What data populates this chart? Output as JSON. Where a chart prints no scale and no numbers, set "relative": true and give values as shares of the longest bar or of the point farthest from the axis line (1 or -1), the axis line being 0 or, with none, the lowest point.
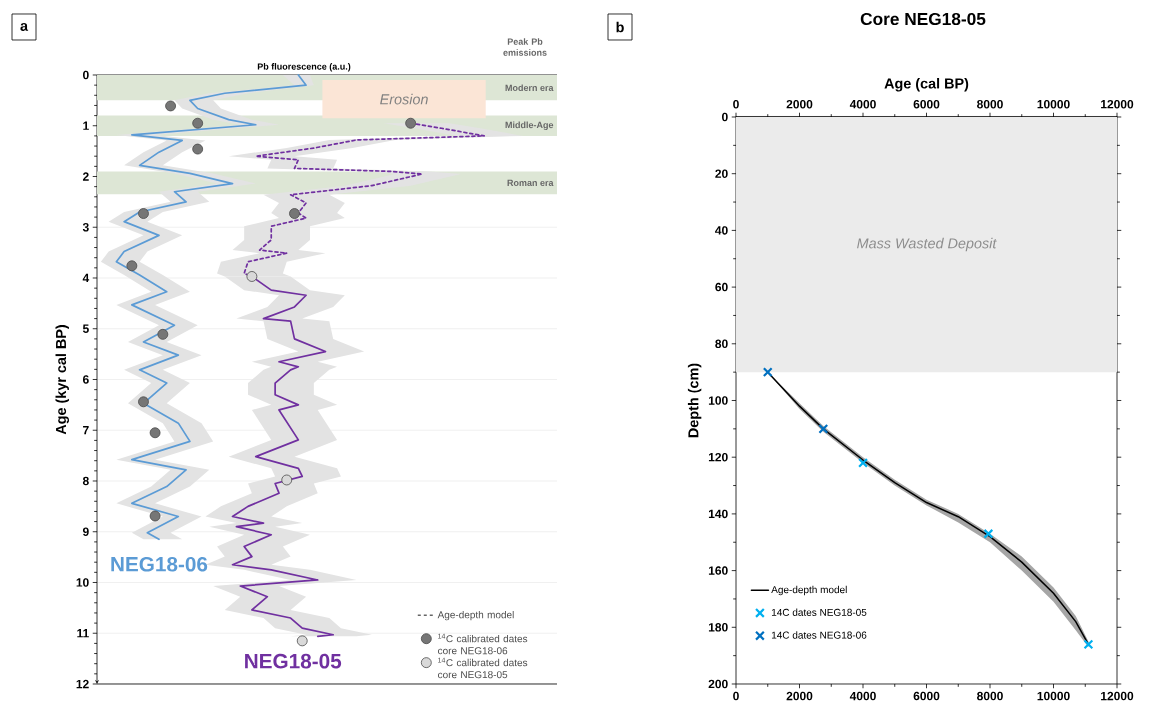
{
  "chart_data": [
    {
      "type": "line",
      "orientation": "horizontal",
      "relative": true,
      "xlabel": "Pb fluorescence (a.u.)",
      "ylabel": "Age (kyr cal BP)",
      "ylim": [
        12,
        0
      ],
      "yticks": [
        0,
        1,
        2,
        3,
        4,
        5,
        6,
        7,
        8,
        9,
        10,
        11,
        12
      ],
      "grid": "y",
      "legend": "bottom right",
      "bands": [
        {
          "axis": "y",
          "from": 0,
          "to": 0.5,
          "label": "Modern era",
          "color": "#dde6d5"
        },
        {
          "axis": "y",
          "from": 0.8,
          "to": 1.2,
          "label": "Middle-Age",
          "color": "#dde6d5"
        },
        {
          "axis": "y",
          "from": 1.9,
          "to": 2.35,
          "label": "Roman era",
          "color": "#dde6d5"
        },
        {
          "axis": "y",
          "from": 0.1,
          "to": 0.85,
          "label": "Erosion",
          "color": "#fbe5d6"
        }
      ],
      "annotations": [
        "a",
        "Peak Pb emissions",
        "Age-depth model"
      ],
      "series": [
        {
          "name": "NEG18-06",
          "color": "#5b9bd5",
          "line_style": "solid",
          "x": [
            0,
            0.2,
            0.36,
            0.5,
            0.66,
            0.88,
            0.98,
            1.18,
            1.29,
            1.52,
            1.78,
            1.94,
            2.14,
            2.3,
            2.5,
            2.7,
            2.89,
            3.16,
            3.48,
            3.68,
            3.94,
            4.27,
            4.53,
            4.93,
            5.26,
            5.52,
            5.81,
            6.07,
            6.47,
            6.86,
            7.22,
            7.58,
            7.78,
            8.11,
            8.44,
            8.7,
            9.02,
            9.15
          ],
          "values": [
            0.52,
            0.54,
            0.33,
            0.24,
            0.26,
            0.34,
            0.41,
            0.09,
            0.22,
            0.16,
            0.11,
            0.24,
            0.35,
            0.2,
            0.23,
            0.11,
            0.07,
            0.16,
            0.07,
            0.05,
            0.11,
            0.18,
            0.09,
            0.2,
            0.12,
            0.21,
            0.11,
            0.18,
            0.12,
            0.21,
            0.24,
            0.09,
            0.23,
            0.18,
            0.09,
            0.21,
            0.13,
            0.16
          ],
          "lower": [
            0.48,
            0.51,
            0.29,
            0.2,
            0.22,
            0.3,
            0.37,
            0.05,
            0.18,
            0.12,
            0.07,
            0.2,
            0.31,
            0.16,
            0.19,
            0.07,
            0.03,
            0.12,
            0.03,
            0.01,
            0.07,
            0.14,
            0.05,
            0.16,
            0.08,
            0.17,
            0.07,
            0.14,
            0.08,
            0.17,
            0.2,
            0.05,
            0.19,
            0.14,
            0.05,
            0.17,
            0.09,
            0.12
          ],
          "upper": [
            0.55,
            0.56,
            0.39,
            0.3,
            0.32,
            0.4,
            0.47,
            0.15,
            0.28,
            0.22,
            0.17,
            0.3,
            0.41,
            0.26,
            0.29,
            0.17,
            0.13,
            0.22,
            0.13,
            0.11,
            0.17,
            0.24,
            0.15,
            0.26,
            0.18,
            0.27,
            0.17,
            0.24,
            0.18,
            0.27,
            0.3,
            0.15,
            0.29,
            0.24,
            0.15,
            0.27,
            0.19,
            0.22
          ]
        },
        {
          "color": "#7030a0",
          "line_style": "dashed",
          "x": [
            0.95,
            1.05,
            1.2,
            1.28,
            1.44,
            1.6,
            1.67,
            1.84,
            1.9,
            1.95,
            2.18,
            2.36,
            2.52,
            2.72,
            2.82,
            2.98,
            3.25,
            3.45,
            3.51,
            3.68,
            3.91,
            3.97
          ],
          "values": [
            0.81,
            0.89,
            1.0,
            0.67,
            0.56,
            0.41,
            0.52,
            0.51,
            0.76,
            0.84,
            0.71,
            0.5,
            0.54,
            0.52,
            0.54,
            0.45,
            0.45,
            0.42,
            0.49,
            0.39,
            0.38,
            0.4
          ],
          "lower": [
            0.74,
            0.82,
            0.93,
            0.6,
            0.49,
            0.34,
            0.45,
            0.44,
            0.69,
            0.77,
            0.64,
            0.43,
            0.47,
            0.45,
            0.47,
            0.38,
            0.38,
            0.35,
            0.42,
            0.32,
            0.31,
            0.33
          ],
          "upper": [
            0.91,
            0.99,
            1.1,
            0.77,
            0.66,
            0.51,
            0.62,
            0.61,
            0.86,
            0.94,
            0.81,
            0.6,
            0.64,
            0.62,
            0.64,
            0.55,
            0.55,
            0.52,
            0.59,
            0.49,
            0.48,
            0.5
          ]
        },
        {
          "name": "NEG18-05",
          "color": "#7030a0",
          "line_style": "solid",
          "x": [
            3.97,
            4.24,
            4.34,
            4.57,
            4.8,
            4.85,
            5.2,
            5.45,
            5.65,
            5.75,
            5.81,
            6.07,
            6.3,
            6.5,
            6.6,
            7.19,
            7.52,
            7.75,
            7.91,
            8.05,
            8.24,
            8.5,
            8.7,
            8.83,
            8.9,
            9.06,
            9.29,
            9.49,
            9.65,
            9.75,
            9.95,
            10.07,
            10.28,
            10.54,
            10.7,
            10.9,
            11.03,
            11.06
          ],
          "values": [
            0.4,
            0.45,
            0.54,
            0.51,
            0.43,
            0.5,
            0.51,
            0.59,
            0.47,
            0.52,
            0.5,
            0.46,
            0.46,
            0.52,
            0.47,
            0.52,
            0.41,
            0.52,
            0.53,
            0.46,
            0.47,
            0.39,
            0.35,
            0.43,
            0.36,
            0.45,
            0.38,
            0.4,
            0.35,
            0.45,
            0.57,
            0.37,
            0.44,
            0.4,
            0.5,
            0.53,
            0.61,
            0.57
          ],
          "lower": [
            0.33,
            0.38,
            0.47,
            0.44,
            0.36,
            0.43,
            0.44,
            0.52,
            0.4,
            0.45,
            0.43,
            0.39,
            0.39,
            0.45,
            0.4,
            0.45,
            0.34,
            0.45,
            0.46,
            0.39,
            0.4,
            0.32,
            0.28,
            0.36,
            0.29,
            0.38,
            0.31,
            0.33,
            0.28,
            0.38,
            0.5,
            0.3,
            0.37,
            0.33,
            0.43,
            0.46,
            0.54,
            0.5
          ],
          "upper": [
            0.5,
            0.55,
            0.64,
            0.61,
            0.53,
            0.6,
            0.61,
            0.69,
            0.57,
            0.62,
            0.6,
            0.56,
            0.56,
            0.62,
            0.57,
            0.62,
            0.51,
            0.62,
            0.63,
            0.56,
            0.57,
            0.49,
            0.45,
            0.53,
            0.46,
            0.55,
            0.48,
            0.5,
            0.45,
            0.55,
            0.67,
            0.47,
            0.54,
            0.5,
            0.6,
            0.63,
            0.71,
            0.67
          ]
        },
        {
          "name": "$^{14}$C calibrated dates core NEG18-06",
          "type": "scatter",
          "marker": "circle",
          "color": "#767676",
          "x": [
            0.61,
            0.95,
            1.46,
            2.73,
            3.76,
            5.11,
            0.95,
            2.73,
            6.44,
            7.05,
            8.69
          ],
          "values": [
            0.19,
            0.26,
            0.26,
            0.12,
            0.09,
            0.17,
            0.81,
            0.51,
            0.12,
            0.15,
            0.15
          ]
        },
        {
          "name": "$^{14}$C calibrated dates core NEG18-05",
          "type": "scatter",
          "marker": "circle",
          "color": "#d9d9d9",
          "x": [
            3.97,
            7.98,
            11.15
          ],
          "values": [
            0.4,
            0.49,
            0.53
          ]
        }
      ]
    },
    {
      "type": "line",
      "title": "Core NEG18-05",
      "x2label": "Age (cal BP)",
      "ylabel": "Depth (cm)",
      "xlim": [
        0,
        12000
      ],
      "xticks": [
        0,
        2000,
        4000,
        6000,
        8000,
        10000,
        12000
      ],
      "x2lim": [
        0,
        12000
      ],
      "x2ticks": [
        0,
        2000,
        4000,
        6000,
        8000,
        10000,
        12000
      ],
      "ylim": [
        200,
        0
      ],
      "yticks": [
        0,
        20,
        40,
        60,
        80,
        100,
        120,
        140,
        160,
        180,
        200
      ],
      "legend": "bottom left",
      "bands": [
        {
          "axis": "y",
          "from": 0,
          "to": 90,
          "label": "Mass Wasted Deposit",
          "color": "#ebebeb"
        }
      ],
      "annotations": [
        "b"
      ],
      "series": [
        {
          "name": "Age-depth model",
          "color": "#000000",
          "line_style": "solid",
          "x": [
            1000,
            2000,
            2750,
            4000,
            5000,
            6000,
            7000,
            8000,
            9000,
            10000,
            10700,
            11100
          ],
          "values": [
            90,
            102,
            110,
            121,
            129,
            136,
            141,
            148,
            157,
            168,
            178,
            186
          ],
          "lower": [
            90,
            101,
            109,
            120,
            128,
            135,
            140,
            147,
            155,
            166,
            176,
            185
          ],
          "upper": [
            90,
            103,
            111,
            122,
            130,
            137,
            143,
            150,
            160,
            171,
            181,
            187
          ]
        },
        {
          "name": "14C dates NEG18-05",
          "type": "scatter",
          "marker": "cross",
          "color": "#00b0f0",
          "x": [
            4000,
            7950,
            11100
          ],
          "values": [
            122,
            147,
            186
          ]
        },
        {
          "name": "14C dates NEG18-06",
          "type": "scatter",
          "marker": "cross",
          "color": "#0070c0",
          "x": [
            1000,
            2750
          ],
          "values": [
            90,
            110
          ]
        }
      ]
    }
  ]
}
